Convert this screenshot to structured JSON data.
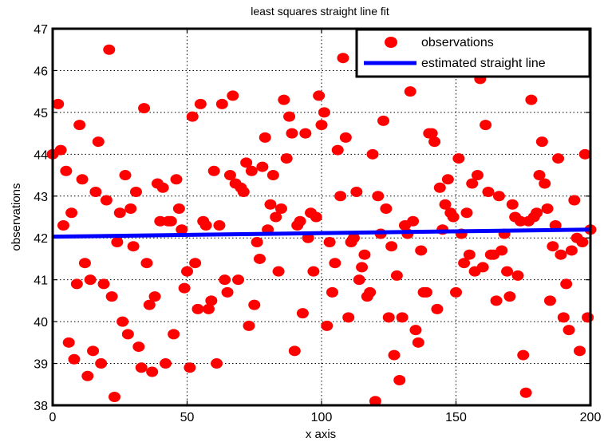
{
  "chart_data": {
    "type": "scatter",
    "title": "least squares straight line fit",
    "xlabel": "x axis",
    "ylabel": "observations",
    "xlim": [
      0,
      200
    ],
    "ylim": [
      38,
      47
    ],
    "x_ticks": [
      0,
      50,
      100,
      150,
      200
    ],
    "y_ticks": [
      38,
      39,
      40,
      41,
      42,
      43,
      44,
      45,
      46,
      47
    ],
    "grid": true,
    "legend_position": "top-right",
    "colors": {
      "observations": "#ff0000",
      "fit_line": "#0000ff"
    },
    "series": [
      {
        "name": "observations",
        "marker": "circle",
        "points": [
          [
            0,
            44.0
          ],
          [
            2,
            45.2
          ],
          [
            3,
            44.1
          ],
          [
            4,
            42.3
          ],
          [
            5,
            43.6
          ],
          [
            6,
            39.5
          ],
          [
            7,
            42.6
          ],
          [
            8,
            39.1
          ],
          [
            9,
            40.9
          ],
          [
            10,
            44.7
          ],
          [
            11,
            43.4
          ],
          [
            12,
            41.4
          ],
          [
            13,
            38.7
          ],
          [
            14,
            41.0
          ],
          [
            15,
            39.3
          ],
          [
            16,
            43.1
          ],
          [
            17,
            44.3
          ],
          [
            18,
            39.0
          ],
          [
            19,
            40.9
          ],
          [
            20,
            42.9
          ],
          [
            21,
            46.5
          ],
          [
            22,
            40.6
          ],
          [
            23,
            38.2
          ],
          [
            24,
            41.9
          ],
          [
            25,
            42.6
          ],
          [
            26,
            40.0
          ],
          [
            27,
            43.5
          ],
          [
            28,
            39.7
          ],
          [
            29,
            42.7
          ],
          [
            30,
            41.8
          ],
          [
            31,
            43.1
          ],
          [
            32,
            39.4
          ],
          [
            33,
            38.9
          ],
          [
            34,
            45.1
          ],
          [
            35,
            41.4
          ],
          [
            36,
            40.4
          ],
          [
            37,
            38.8
          ],
          [
            38,
            40.6
          ],
          [
            39,
            43.3
          ],
          [
            40,
            42.4
          ],
          [
            41,
            43.2
          ],
          [
            42,
            39.0
          ],
          [
            43,
            42.4
          ],
          [
            44,
            42.4
          ],
          [
            45,
            39.7
          ],
          [
            46,
            43.4
          ],
          [
            47,
            42.7
          ],
          [
            48,
            42.2
          ],
          [
            49,
            40.8
          ],
          [
            50,
            41.2
          ],
          [
            51,
            38.9
          ],
          [
            52,
            44.9
          ],
          [
            53,
            41.4
          ],
          [
            54,
            40.3
          ],
          [
            55,
            45.2
          ],
          [
            56,
            42.4
          ],
          [
            57,
            42.3
          ],
          [
            58,
            40.3
          ],
          [
            59,
            40.5
          ],
          [
            60,
            43.6
          ],
          [
            61,
            39.0
          ],
          [
            62,
            42.3
          ],
          [
            63,
            45.2
          ],
          [
            64,
            41.0
          ],
          [
            65,
            40.7
          ],
          [
            66,
            43.5
          ],
          [
            67,
            45.4
          ],
          [
            68,
            43.3
          ],
          [
            69,
            41.0
          ],
          [
            70,
            43.2
          ],
          [
            71,
            43.1
          ],
          [
            72,
            43.8
          ],
          [
            73,
            39.9
          ],
          [
            74,
            43.6
          ],
          [
            75,
            40.4
          ],
          [
            76,
            41.9
          ],
          [
            77,
            41.5
          ],
          [
            78,
            43.7
          ],
          [
            79,
            44.4
          ],
          [
            80,
            42.2
          ],
          [
            81,
            42.8
          ],
          [
            82,
            43.5
          ],
          [
            83,
            42.5
          ],
          [
            84,
            41.2
          ],
          [
            85,
            42.7
          ],
          [
            86,
            45.3
          ],
          [
            87,
            43.9
          ],
          [
            88,
            44.9
          ],
          [
            89,
            44.5
          ],
          [
            90,
            39.3
          ],
          [
            91,
            42.3
          ],
          [
            92,
            42.4
          ],
          [
            93,
            40.2
          ],
          [
            94,
            44.5
          ],
          [
            95,
            42.0
          ],
          [
            96,
            42.6
          ],
          [
            97,
            41.2
          ],
          [
            98,
            42.5
          ],
          [
            99,
            45.4
          ],
          [
            100,
            44.7
          ],
          [
            101,
            45.0
          ],
          [
            102,
            39.9
          ],
          [
            103,
            41.9
          ],
          [
            104,
            40.7
          ],
          [
            105,
            41.4
          ],
          [
            106,
            44.1
          ],
          [
            107,
            43.0
          ],
          [
            108,
            46.3
          ],
          [
            109,
            44.4
          ],
          [
            110,
            40.1
          ],
          [
            111,
            41.9
          ],
          [
            112,
            42.0
          ],
          [
            113,
            43.1
          ],
          [
            114,
            41.0
          ],
          [
            115,
            41.3
          ],
          [
            116,
            41.6
          ],
          [
            117,
            40.6
          ],
          [
            118,
            40.7
          ],
          [
            119,
            44.0
          ],
          [
            120,
            38.1
          ],
          [
            121,
            43.0
          ],
          [
            122,
            42.1
          ],
          [
            123,
            44.8
          ],
          [
            124,
            42.7
          ],
          [
            125,
            40.1
          ],
          [
            126,
            41.8
          ],
          [
            127,
            39.2
          ],
          [
            128,
            41.1
          ],
          [
            129,
            38.6
          ],
          [
            130,
            40.1
          ],
          [
            131,
            42.3
          ],
          [
            132,
            42.1
          ],
          [
            133,
            45.5
          ],
          [
            134,
            42.4
          ],
          [
            135,
            39.8
          ],
          [
            136,
            39.5
          ],
          [
            137,
            41.7
          ],
          [
            138,
            40.7
          ],
          [
            139,
            40.7
          ],
          [
            140,
            44.5
          ],
          [
            141,
            44.5
          ],
          [
            142,
            44.3
          ],
          [
            143,
            40.3
          ],
          [
            144,
            43.2
          ],
          [
            145,
            42.2
          ],
          [
            146,
            42.8
          ],
          [
            147,
            43.4
          ],
          [
            148,
            42.6
          ],
          [
            149,
            42.5
          ],
          [
            150,
            40.7
          ],
          [
            151,
            43.9
          ],
          [
            152,
            42.1
          ],
          [
            153,
            41.4
          ],
          [
            154,
            42.6
          ],
          [
            155,
            41.6
          ],
          [
            156,
            43.3
          ],
          [
            157,
            41.2
          ],
          [
            158,
            43.5
          ],
          [
            159,
            45.8
          ],
          [
            160,
            41.3
          ],
          [
            161,
            44.7
          ],
          [
            162,
            43.1
          ],
          [
            163,
            41.6
          ],
          [
            164,
            41.6
          ],
          [
            165,
            40.5
          ],
          [
            166,
            43.0
          ],
          [
            167,
            41.7
          ],
          [
            168,
            42.1
          ],
          [
            169,
            41.2
          ],
          [
            170,
            40.6
          ],
          [
            171,
            42.8
          ],
          [
            172,
            42.5
          ],
          [
            173,
            41.1
          ],
          [
            174,
            42.4
          ],
          [
            175,
            39.2
          ],
          [
            176,
            38.3
          ],
          [
            177,
            42.4
          ],
          [
            178,
            45.3
          ],
          [
            179,
            42.5
          ],
          [
            180,
            42.6
          ],
          [
            181,
            43.5
          ],
          [
            182,
            44.3
          ],
          [
            183,
            43.3
          ],
          [
            184,
            42.7
          ],
          [
            185,
            40.5
          ],
          [
            186,
            41.8
          ],
          [
            187,
            42.3
          ],
          [
            188,
            43.9
          ],
          [
            189,
            41.6
          ],
          [
            190,
            40.1
          ],
          [
            191,
            40.9
          ],
          [
            192,
            39.8
          ],
          [
            193,
            41.7
          ],
          [
            194,
            42.9
          ],
          [
            195,
            42.0
          ],
          [
            196,
            39.3
          ],
          [
            197,
            41.9
          ],
          [
            198,
            44.0
          ],
          [
            199,
            40.1
          ],
          [
            200,
            42.2
          ]
        ]
      },
      {
        "name": "estimated straight line",
        "line": true,
        "points": [
          [
            0,
            42.03
          ],
          [
            200,
            42.2
          ]
        ]
      }
    ]
  }
}
